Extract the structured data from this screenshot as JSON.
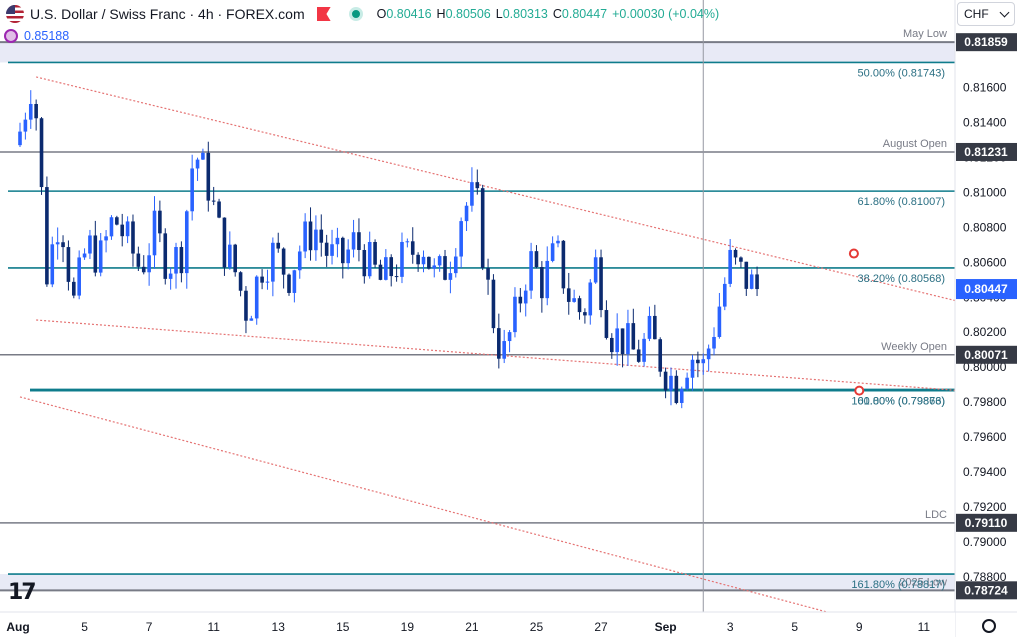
{
  "header": {
    "title": "U.S. Dollar / Swiss Franc · 4h · FOREX.com",
    "ohlc": {
      "o_label": "O",
      "o": "0.80416",
      "h_label": "H",
      "h": "0.80506",
      "l_label": "L",
      "l": "0.80313",
      "c_label": "C",
      "c": "0.80447",
      "change": "+0.00030 (+0.04%)"
    },
    "indicator_value": "0.85188"
  },
  "currency_selector": "CHF",
  "colors": {
    "up": "#2962ff",
    "down": "#0b2a6f",
    "level": "#787b86",
    "fib": "#0f7c8c",
    "fib_text": "#2a6f83",
    "channel": "#e57373",
    "price_tag": "#2962ff",
    "level_tag": "#363a45",
    "zone": "#e8eaf6"
  },
  "chart_data": {
    "type": "candlestick",
    "ylim": [
      0.786,
      0.8194
    ],
    "y_ticks": [
      0.816,
      0.814,
      0.812,
      0.81,
      0.808,
      0.806,
      0.804,
      0.802,
      0.8,
      0.798,
      0.796,
      0.794,
      0.792,
      0.79,
      0.788
    ],
    "x_labels": [
      "Aug",
      "5",
      "7",
      "11",
      "13",
      "15",
      "19",
      "21",
      "25",
      "27",
      "Sep",
      "3",
      "5",
      "9",
      "11"
    ],
    "x_label_index": [
      0,
      12,
      24,
      36,
      48,
      60,
      72,
      84,
      96,
      108,
      120,
      132,
      144,
      156,
      168
    ],
    "current_price": "0.80447",
    "current_value": 0.80447,
    "close_path": [
      0.8135,
      0.8168,
      0.8054,
      0.809,
      0.8036,
      0.807,
      0.8062,
      0.8086,
      0.8072,
      0.8056,
      0.8078,
      0.806,
      0.8064,
      0.8124,
      0.8106,
      0.8072,
      0.8056,
      0.803,
      0.8058,
      0.8066,
      0.8052,
      0.807,
      0.808,
      0.8064,
      0.806,
      0.8072,
      0.806,
      0.8048,
      0.8058,
      0.8064,
      0.8072,
      0.805,
      0.806,
      0.809,
      0.8098,
      0.804,
      0.8004,
      0.803,
      0.8062,
      0.8048,
      0.8066,
      0.804,
      0.803,
      0.806,
      0.802,
      0.8016,
      0.8006,
      0.8018,
      0.8,
      0.799,
      0.8008,
      0.8,
      0.803,
      0.806,
      0.8052,
      0.8044
    ],
    "levels": [
      {
        "label": "May Low",
        "value": 0.81859,
        "tag": "0.81859",
        "lw": 2
      },
      {
        "label": "August Open",
        "value": 0.81231,
        "tag": "0.81231",
        "lw": 1.5
      },
      {
        "label": "Weekly Open",
        "value": 0.80071,
        "tag": "0.80071",
        "lw": 1.5
      },
      {
        "label": "LDC",
        "value": 0.7911,
        "tag": "0.79110",
        "lw": 1.5
      },
      {
        "label": "2025 Low",
        "value": 0.78724,
        "tag": "0.78724",
        "lw": 2
      }
    ],
    "fib_levels": [
      {
        "label": "50.00% (0.81743)",
        "value": 0.81743
      },
      {
        "label": "61.80% (0.81007)",
        "value": 0.81007
      },
      {
        "label": "38.20% (0.80568)",
        "value": 0.80568
      },
      {
        "label": "61.80% (0.79866)",
        "value": 0.79866
      },
      {
        "label": "100.00% (0.79873)",
        "value": 0.79873
      },
      {
        "label": "161.80% (0.78817)",
        "value": 0.78817
      }
    ],
    "zones": [
      {
        "from": 0.81743,
        "to": 0.81859
      },
      {
        "from": 0.78724,
        "to": 0.78817
      }
    ],
    "channel": {
      "upper": [
        {
          "i": 3,
          "v": 0.8166
        },
        {
          "i": 190,
          "v": 0.8026
        }
      ],
      "lower": [
        {
          "i": 3,
          "v": 0.8027
        },
        {
          "i": 190,
          "v": 0.7983
        }
      ],
      "outer": [
        {
          "i": 0,
          "v": 0.7983
        },
        {
          "i": 150,
          "v": 0.786
        }
      ],
      "markers": [
        {
          "i": 155,
          "v": 0.8065
        },
        {
          "i": 156,
          "v": 0.79866
        }
      ]
    },
    "cursor_index": 127
  }
}
